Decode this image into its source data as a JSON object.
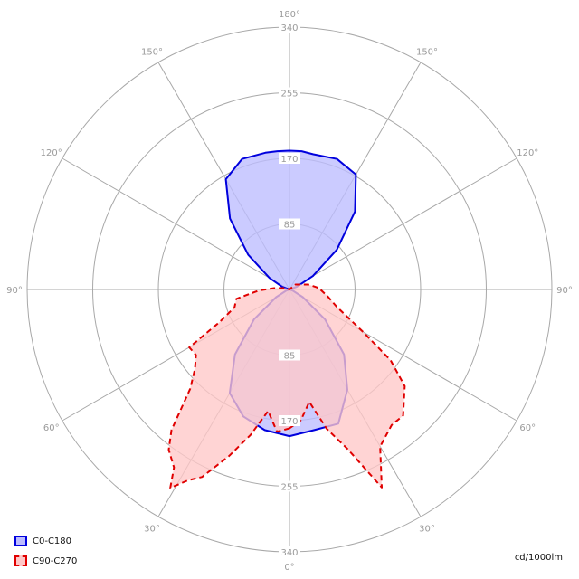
{
  "chart_data": {
    "type": "polar",
    "unit_label": "cd/1000lm",
    "radial_ticks": [
      85,
      170,
      255,
      340
    ],
    "radial_tick_labels": [
      "85",
      "170",
      "255",
      "340"
    ],
    "angle_labels": {
      "top": "180°",
      "bottom": "0°",
      "left": [
        "150°",
        "120°",
        "90°",
        "60°",
        "30°"
      ],
      "right": [
        "150°",
        "120°",
        "90°",
        "60°",
        "30°"
      ]
    },
    "r_max": 340,
    "grid": true,
    "legend_position": "bottom-left",
    "series": [
      {
        "name": "C0-C180",
        "color": "#0000dd",
        "fill": "#bcbcff",
        "dash": "solid",
        "points": [
          {
            "deg": 0,
            "r": 190
          },
          {
            "deg": 10,
            "r": 185
          },
          {
            "deg": 20,
            "r": 175
          },
          {
            "deg": 30,
            "r": 155
          },
          {
            "deg": 40,
            "r": 110
          },
          {
            "deg": 50,
            "r": 60
          },
          {
            "deg": 60,
            "r": 20
          },
          {
            "deg": 70,
            "r": 5
          },
          {
            "deg": 90,
            "r": 0
          },
          {
            "deg": 110,
            "r": 10
          },
          {
            "deg": 120,
            "r": 30
          },
          {
            "deg": 130,
            "r": 70
          },
          {
            "deg": 140,
            "r": 120
          },
          {
            "deg": 150,
            "r": 165
          },
          {
            "deg": 160,
            "r": 180
          },
          {
            "deg": 170,
            "r": 180
          },
          {
            "deg": 175,
            "r": 180
          },
          {
            "deg": 180,
            "r": 180
          },
          {
            "deg": 185,
            "r": 180
          },
          {
            "deg": 190,
            "r": 178
          },
          {
            "deg": 200,
            "r": 180
          },
          {
            "deg": 210,
            "r": 172
          },
          {
            "deg": 220,
            "r": 132
          },
          {
            "deg": 230,
            "r": 80
          },
          {
            "deg": 240,
            "r": 35
          },
          {
            "deg": 250,
            "r": 10
          },
          {
            "deg": 270,
            "r": 0
          },
          {
            "deg": 290,
            "r": 5
          },
          {
            "deg": 300,
            "r": 20
          },
          {
            "deg": 310,
            "r": 60
          },
          {
            "deg": 320,
            "r": 110
          },
          {
            "deg": 330,
            "r": 150
          },
          {
            "deg": 340,
            "r": 185
          },
          {
            "deg": 350,
            "r": 185
          }
        ]
      },
      {
        "name": "C90-C270",
        "color": "#e00000",
        "fill": "#ffc8c8",
        "dash": "dashed",
        "points": [
          {
            "deg": 0,
            "r": 180
          },
          {
            "deg": 5,
            "r": 185
          },
          {
            "deg": 10,
            "r": 160
          },
          {
            "deg": 15,
            "r": 195
          },
          {
            "deg": 20,
            "r": 230
          },
          {
            "deg": 25,
            "r": 268
          },
          {
            "deg": 28,
            "r": 280
          },
          {
            "deg": 31,
            "r": 300
          },
          {
            "deg": 33,
            "r": 275
          },
          {
            "deg": 37,
            "r": 260
          },
          {
            "deg": 40,
            "r": 238
          },
          {
            "deg": 45,
            "r": 182
          },
          {
            "deg": 50,
            "r": 160
          },
          {
            "deg": 55,
            "r": 148
          },
          {
            "deg": 60,
            "r": 150
          },
          {
            "deg": 65,
            "r": 100
          },
          {
            "deg": 72,
            "r": 75
          },
          {
            "deg": 80,
            "r": 70
          },
          {
            "deg": 88,
            "r": 40
          },
          {
            "deg": 95,
            "r": 20
          },
          {
            "deg": 110,
            "r": 5
          },
          {
            "deg": 180,
            "r": 0
          },
          {
            "deg": 230,
            "r": 10
          },
          {
            "deg": 255,
            "r": 25
          },
          {
            "deg": 265,
            "r": 35
          },
          {
            "deg": 270,
            "r": 40
          },
          {
            "deg": 280,
            "r": 50
          },
          {
            "deg": 290,
            "r": 65
          },
          {
            "deg": 300,
            "r": 110
          },
          {
            "deg": 305,
            "r": 160
          },
          {
            "deg": 310,
            "r": 195
          },
          {
            "deg": 318,
            "r": 220
          },
          {
            "deg": 323,
            "r": 220
          },
          {
            "deg": 330,
            "r": 235
          },
          {
            "deg": 335,
            "r": 283
          },
          {
            "deg": 340,
            "r": 220
          },
          {
            "deg": 345,
            "r": 187
          },
          {
            "deg": 350,
            "r": 148
          },
          {
            "deg": 355,
            "r": 170
          }
        ]
      }
    ]
  }
}
